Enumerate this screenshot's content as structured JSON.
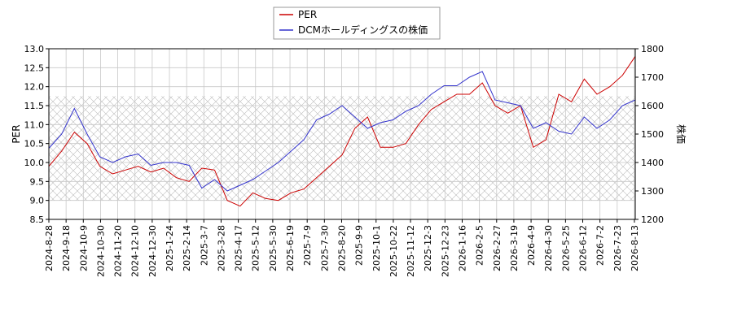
{
  "chart_data": {
    "type": "line",
    "legend": {
      "position": "top-center",
      "entries": [
        "PER",
        "DCMホールディングスの株価"
      ]
    },
    "grid": true,
    "band": {
      "from": 9.0,
      "to": 11.75,
      "pattern": "crosshatch"
    },
    "xlabel": "",
    "x_ticks": [
      "2024-8-28",
      "2024-9-18",
      "2024-10-9",
      "2024-10-30",
      "2024-11-20",
      "2024-12-10",
      "2024-12-30",
      "2025-1-24",
      "2025-2-14",
      "2025-3-7",
      "2025-3-28",
      "2025-4-17",
      "2025-5-12",
      "2025-5-30",
      "2025-6-19",
      "2025-7-9",
      "2025-7-30",
      "2025-8-20",
      "2025-9-9",
      "2025-10-1",
      "2025-10-22",
      "2025-11-12",
      "2025-12-3",
      "2025-12-23",
      "2026-1-16",
      "2026-2-5",
      "2026-2-27",
      "2026-3-19",
      "2026-4-9",
      "2026-4-30",
      "2026-5-25",
      "2026-6-12",
      "2026-7-2",
      "2026-7-23",
      "2026-8-13"
    ],
    "y_left": {
      "label": "PER",
      "lim": [
        8.5,
        13.0
      ],
      "ticks": [
        "8.5",
        "9.0",
        "9.5",
        "10.0",
        "10.5",
        "11.0",
        "11.5",
        "12.0",
        "12.5",
        "13.0"
      ]
    },
    "y_right": {
      "label": "株価",
      "lim": [
        1200,
        1800
      ],
      "ticks": [
        "1200",
        "1300",
        "1400",
        "1500",
        "1600",
        "1700",
        "1800"
      ]
    },
    "series": [
      {
        "name": "PER",
        "color": "#cc0000",
        "axis": "left",
        "values": [
          9.9,
          10.3,
          10.8,
          10.5,
          9.9,
          9.7,
          9.8,
          9.9,
          9.75,
          9.85,
          9.6,
          9.5,
          9.85,
          9.8,
          9.0,
          8.85,
          9.2,
          9.05,
          9.0,
          9.2,
          9.3,
          9.6,
          9.9,
          10.2,
          10.9,
          11.2,
          10.4,
          10.4,
          10.5,
          11.0,
          11.4,
          11.6,
          11.8,
          11.8,
          12.1,
          11.5,
          11.3,
          11.5,
          10.4,
          10.6,
          11.8,
          11.6,
          12.2,
          11.8,
          12.0,
          12.3,
          12.8
        ]
      },
      {
        "name": "DCMホールディングスの株価",
        "color": "#3333cc",
        "axis": "right",
        "values": [
          1450,
          1500,
          1590,
          1500,
          1420,
          1400,
          1420,
          1430,
          1390,
          1400,
          1400,
          1390,
          1310,
          1340,
          1300,
          1320,
          1340,
          1370,
          1400,
          1440,
          1480,
          1550,
          1570,
          1600,
          1560,
          1520,
          1540,
          1550,
          1580,
          1600,
          1640,
          1670,
          1670,
          1700,
          1720,
          1620,
          1610,
          1600,
          1520,
          1540,
          1510,
          1500,
          1560,
          1520,
          1550,
          1600,
          1620
        ]
      }
    ]
  }
}
